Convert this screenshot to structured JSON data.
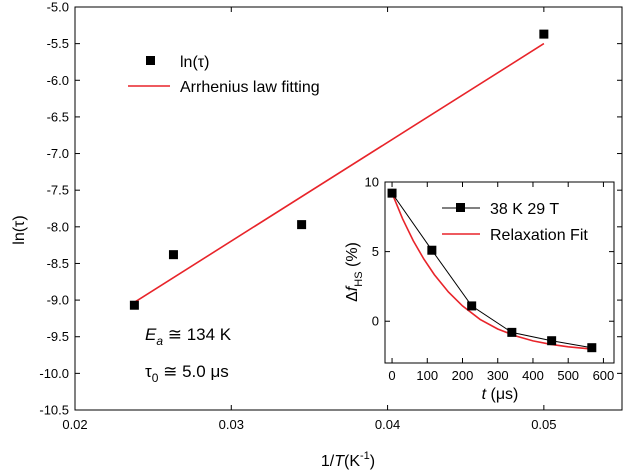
{
  "chart_data": [
    {
      "type": "scatter",
      "xlabel_var": "1/T",
      "xlabel_unit": "(K",
      "xlabel_sup": "-1",
      "xlabel_close": ")",
      "ylabel": "ln(τ)",
      "xlim": [
        0.02,
        0.055
      ],
      "ylim": [
        -10.5,
        -5.0
      ],
      "xticks": [
        "0.02",
        "0.03",
        "0.04",
        "0.05"
      ],
      "xtick_values": [
        0.02,
        0.03,
        0.04,
        0.05
      ],
      "yticks": [
        "-5.0",
        "-5.5",
        "-6.0",
        "-6.5",
        "-7.0",
        "-7.5",
        "-8.0",
        "-8.5",
        "-9.0",
        "-9.5",
        "-10.0",
        "-10.5"
      ],
      "ytick_values": [
        -5.0,
        -5.5,
        -6.0,
        -6.5,
        -7.0,
        -7.5,
        -8.0,
        -8.5,
        -9.0,
        -9.5,
        -10.0,
        -10.5
      ],
      "series": [
        {
          "name": "ln(τ)",
          "style": "markers",
          "color": "#000000",
          "x": [
            0.0238,
            0.0263,
            0.0345,
            0.05
          ],
          "y": [
            -9.07,
            -8.38,
            -7.97,
            -5.37
          ]
        },
        {
          "name": "Arrhenius law fitting",
          "style": "line",
          "color": "#e8242a",
          "x": [
            0.0238,
            0.05
          ],
          "y": [
            -9.03,
            -5.5
          ]
        }
      ],
      "annotations": {
        "ea_symbol": "E",
        "ea_sub": "a",
        "ea_value": " ≅ 134 K",
        "tau_symbol": "τ",
        "tau_sub": "0",
        "tau_value": " ≅ 5.0 μs"
      }
    },
    {
      "type": "line",
      "xlabel_var": "t",
      "xlabel_unit": " (μs)",
      "ylabel_pre": "Δ",
      "ylabel_var": "f",
      "ylabel_sub": "HS",
      "ylabel_unit": " (%)",
      "xlim": [
        -20,
        630
      ],
      "ylim": [
        -3,
        10
      ],
      "xticks": [
        "0",
        "100",
        "200",
        "300",
        "400",
        "500",
        "600"
      ],
      "xtick_values": [
        0,
        100,
        200,
        300,
        400,
        500,
        600
      ],
      "yticks": [
        "10",
        "5",
        "0"
      ],
      "ytick_values": [
        10,
        5,
        0
      ],
      "series": [
        {
          "name": "38 K 29 T",
          "style": "line+markers",
          "color": "#000000",
          "x": [
            0,
            113,
            226,
            340,
            453,
            567
          ],
          "y": [
            9.2,
            5.1,
            1.1,
            -0.8,
            -1.4,
            -1.9
          ]
        },
        {
          "name": "Relaxation Fit",
          "style": "line",
          "color": "#e8242a",
          "x": [
            0,
            30,
            60,
            90,
            120,
            160,
            200,
            250,
            300,
            350,
            400,
            450,
            500,
            567
          ],
          "y": [
            9.2,
            7.36,
            5.79,
            4.47,
            3.35,
            2.1,
            1.1,
            0.13,
            -0.56,
            -1.05,
            -1.41,
            -1.66,
            -1.84,
            -2.0
          ]
        }
      ]
    }
  ]
}
